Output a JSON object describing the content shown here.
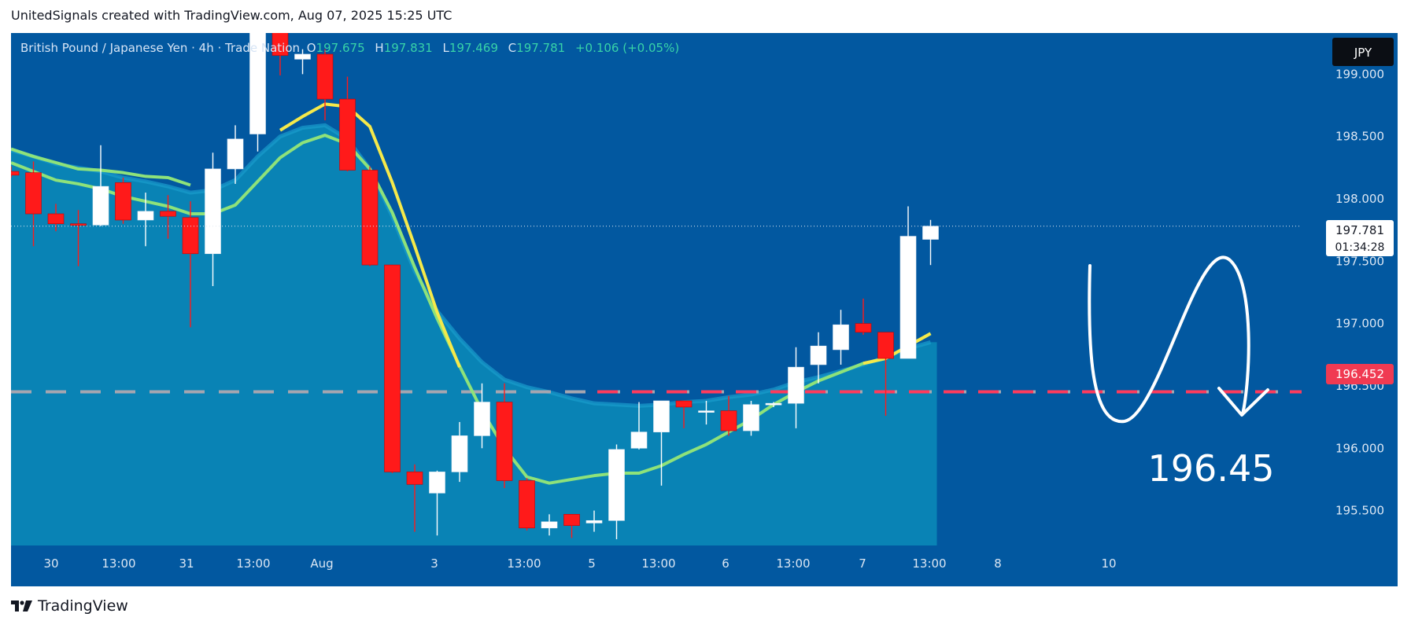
{
  "caption": "UnitedSignals created with TradingView.com, Aug 07, 2025 15:25 UTC",
  "legend": {
    "symbol": "British Pound / Japanese Yen · 4h · Trade Nation",
    "o_label": "O",
    "o": "197.675",
    "h_label": "H",
    "h": "197.831",
    "l_label": "L",
    "l": "197.469",
    "c_label": "C",
    "c": "197.781",
    "change": "+0.106 (+0.05%)"
  },
  "currency_button": "JPY",
  "price_tag": {
    "price": "197.781",
    "countdown": "01:34:28"
  },
  "level_tag": "196.452",
  "target_text": "196.45",
  "brand": "TradingView",
  "colors": {
    "background": "#0258a0",
    "area_fill": "#0a86b6",
    "bull": "#ffffff",
    "bear": "#ff1a1a",
    "ma_fast": "#f5e94a",
    "ma_slow": "#8ee27a",
    "level": "#ff3b5c"
  },
  "chart_data": {
    "type": "candlestick",
    "interval": "4h",
    "ylim": [
      195.22,
      199.33
    ],
    "y_ticks": [
      "195.500",
      "196.000",
      "196.500",
      "197.000",
      "197.500",
      "198.000",
      "198.500",
      "199.000"
    ],
    "x_ticks": [
      "30",
      "13:00",
      "31",
      "13:00",
      "Aug",
      "3",
      "13:00",
      "5",
      "13:00",
      "6",
      "13:00",
      "7",
      "13:00",
      "8",
      "10"
    ],
    "horizontal_level": 196.452,
    "candles": [
      {
        "o": 198.22,
        "h": 198.26,
        "l": 198.17,
        "c": 198.19
      },
      {
        "o": 198.21,
        "h": 198.3,
        "l": 197.62,
        "c": 197.88
      },
      {
        "o": 197.88,
        "h": 197.96,
        "l": 197.74,
        "c": 197.8
      },
      {
        "o": 197.8,
        "h": 197.91,
        "l": 197.46,
        "c": 197.79
      },
      {
        "o": 197.79,
        "h": 198.43,
        "l": 197.78,
        "c": 198.1
      },
      {
        "o": 198.13,
        "h": 198.17,
        "l": 197.8,
        "c": 197.83
      },
      {
        "o": 197.83,
        "h": 198.05,
        "l": 197.62,
        "c": 197.9
      },
      {
        "o": 197.9,
        "h": 198.03,
        "l": 197.68,
        "c": 197.86
      },
      {
        "o": 197.85,
        "h": 197.98,
        "l": 196.97,
        "c": 197.56
      },
      {
        "o": 197.56,
        "h": 198.37,
        "l": 197.3,
        "c": 198.24
      },
      {
        "o": 198.24,
        "h": 198.59,
        "l": 198.12,
        "c": 198.48
      },
      {
        "o": 198.52,
        "h": 199.4,
        "l": 198.38,
        "c": 199.4
      },
      {
        "o": 199.4,
        "h": 199.4,
        "l": 198.99,
        "c": 199.15
      },
      {
        "o": 199.12,
        "h": 199.2,
        "l": 199.0,
        "c": 199.16
      },
      {
        "o": 199.16,
        "h": 199.2,
        "l": 198.63,
        "c": 198.8
      },
      {
        "o": 198.8,
        "h": 198.98,
        "l": 198.22,
        "c": 198.23
      },
      {
        "o": 198.23,
        "h": 198.26,
        "l": 197.46,
        "c": 197.47
      },
      {
        "o": 197.47,
        "h": 197.47,
        "l": 195.8,
        "c": 195.81
      },
      {
        "o": 195.81,
        "h": 195.87,
        "l": 195.33,
        "c": 195.71
      },
      {
        "o": 195.64,
        "h": 195.82,
        "l": 195.3,
        "c": 195.81
      },
      {
        "o": 195.81,
        "h": 196.21,
        "l": 195.73,
        "c": 196.1
      },
      {
        "o": 196.1,
        "h": 196.52,
        "l": 196.0,
        "c": 196.37
      },
      {
        "o": 196.37,
        "h": 196.52,
        "l": 195.68,
        "c": 195.74
      },
      {
        "o": 195.74,
        "h": 195.76,
        "l": 195.34,
        "c": 195.36
      },
      {
        "o": 195.36,
        "h": 195.47,
        "l": 195.3,
        "c": 195.41
      },
      {
        "o": 195.47,
        "h": 195.47,
        "l": 195.28,
        "c": 195.38
      },
      {
        "o": 195.4,
        "h": 195.5,
        "l": 195.33,
        "c": 195.42
      },
      {
        "o": 195.42,
        "h": 196.03,
        "l": 195.27,
        "c": 195.99
      },
      {
        "o": 196.0,
        "h": 196.37,
        "l": 195.99,
        "c": 196.13
      },
      {
        "o": 196.13,
        "h": 196.38,
        "l": 195.7,
        "c": 196.38
      },
      {
        "o": 196.38,
        "h": 196.38,
        "l": 196.16,
        "c": 196.33
      },
      {
        "o": 196.3,
        "h": 196.38,
        "l": 196.19,
        "c": 196.3
      },
      {
        "o": 196.3,
        "h": 196.42,
        "l": 196.1,
        "c": 196.14
      },
      {
        "o": 196.14,
        "h": 196.38,
        "l": 196.1,
        "c": 196.35
      },
      {
        "o": 196.35,
        "h": 196.37,
        "l": 196.33,
        "c": 196.36
      },
      {
        "o": 196.36,
        "h": 196.81,
        "l": 196.16,
        "c": 196.65
      },
      {
        "o": 196.67,
        "h": 196.93,
        "l": 196.52,
        "c": 196.82
      },
      {
        "o": 196.79,
        "h": 197.11,
        "l": 196.67,
        "c": 196.99
      },
      {
        "o": 197.0,
        "h": 197.2,
        "l": 196.91,
        "c": 196.93
      },
      {
        "o": 196.93,
        "h": 196.93,
        "l": 196.26,
        "c": 196.72
      },
      {
        "o": 196.72,
        "h": 197.94,
        "l": 196.72,
        "c": 197.7
      },
      {
        "o": 197.675,
        "h": 197.831,
        "l": 197.469,
        "c": 197.781
      }
    ],
    "ma_fast": [
      198.4,
      198.34,
      198.29,
      198.24,
      198.23,
      198.21,
      198.18,
      198.17,
      198.11,
      198.12,
      198.19,
      198.37,
      198.55,
      198.66,
      198.76,
      198.74,
      198.58,
      198.13,
      197.62,
      197.09,
      196.65,
      196.3,
      196.0,
      195.77,
      195.72,
      195.75,
      195.78,
      195.8,
      195.8,
      195.86,
      195.95,
      196.03,
      196.13,
      196.23,
      196.35,
      196.45,
      196.54,
      196.61,
      196.68,
      196.72,
      196.82,
      196.92
    ],
    "ma_slow": [
      198.29,
      198.22,
      198.15,
      198.12,
      198.08,
      198.02,
      197.98,
      197.94,
      197.88,
      197.88,
      197.95,
      198.14,
      198.33,
      198.45,
      198.51,
      198.44,
      198.24,
      197.89,
      197.45,
      197.04,
      196.66,
      196.3,
      196.0,
      195.77,
      195.72,
      195.75,
      195.78,
      195.8,
      195.8,
      195.86,
      195.95,
      196.03,
      196.13,
      196.23,
      196.35,
      196.45,
      196.54,
      196.61,
      196.68,
      196.72,
      196.82,
      196.92
    ],
    "area_upper": [
      198.39,
      198.34,
      198.28,
      198.25,
      198.22,
      198.17,
      198.14,
      198.1,
      198.05,
      198.07,
      198.15,
      198.34,
      198.5,
      198.57,
      198.59,
      198.48,
      198.24,
      197.86,
      197.42,
      197.1,
      196.88,
      196.69,
      196.55,
      196.49,
      196.45,
      196.4,
      196.36,
      196.35,
      196.34,
      196.35,
      196.37,
      196.38,
      196.41,
      196.43,
      196.47,
      196.53,
      196.57,
      196.62,
      196.67,
      196.73,
      196.8,
      196.85
    ]
  }
}
